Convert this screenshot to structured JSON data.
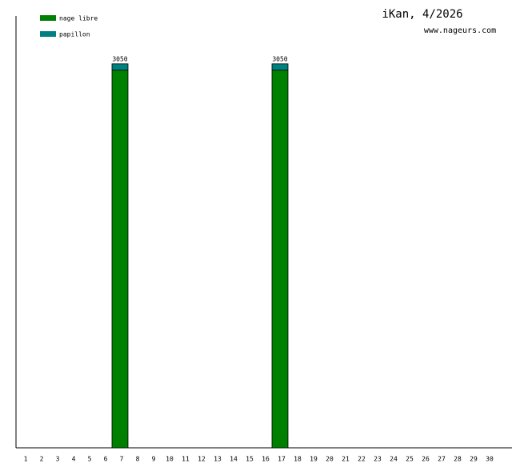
{
  "chart_data": {
    "type": "stacked-bar",
    "title": "iKan, 4/2026",
    "subtitle": "www.nageurs.com",
    "categories": [
      "1",
      "2",
      "3",
      "4",
      "5",
      "6",
      "7",
      "8",
      "9",
      "10",
      "11",
      "12",
      "13",
      "14",
      "15",
      "16",
      "17",
      "18",
      "19",
      "20",
      "21",
      "22",
      "23",
      "24",
      "25",
      "26",
      "27",
      "28",
      "29",
      "30"
    ],
    "series": [
      {
        "name": "nage libre",
        "color": "#008000",
        "values": [
          0,
          0,
          0,
          0,
          0,
          0,
          3000,
          0,
          0,
          0,
          0,
          0,
          0,
          0,
          0,
          0,
          3000,
          0,
          0,
          0,
          0,
          0,
          0,
          0,
          0,
          0,
          0,
          0,
          0,
          0
        ]
      },
      {
        "name": "papillon",
        "color": "#008080",
        "values": [
          0,
          0,
          0,
          0,
          0,
          0,
          50,
          0,
          0,
          0,
          0,
          0,
          0,
          0,
          0,
          0,
          50,
          0,
          0,
          0,
          0,
          0,
          0,
          0,
          0,
          0,
          0,
          0,
          0,
          0
        ]
      }
    ],
    "totals": [
      null,
      null,
      null,
      null,
      null,
      null,
      3050,
      null,
      null,
      null,
      null,
      null,
      null,
      null,
      null,
      null,
      3050,
      null,
      null,
      null,
      null,
      null,
      null,
      null,
      null,
      null,
      null,
      null,
      null,
      null
    ],
    "ylim": [
      0,
      3430
    ]
  }
}
